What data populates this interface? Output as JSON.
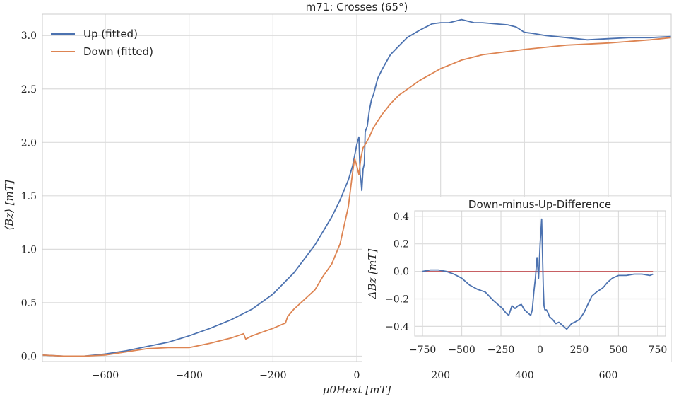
{
  "chart_data": [
    {
      "type": "line",
      "title": "m71: Crosses (65°)",
      "xlabel": "μ0Hext [mT]",
      "ylabel": "⟨Bz⟩ [mT]",
      "xlim": [
        -750,
        750
      ],
      "ylim": [
        -0.05,
        3.2
      ],
      "xticks": [
        -600,
        -400,
        -200,
        0,
        200,
        400,
        600
      ],
      "yticks": [
        0.0,
        0.5,
        1.0,
        1.5,
        2.0,
        2.5,
        3.0
      ],
      "xtick_labels": [
        "−600",
        "−400",
        "−200",
        "0",
        "200",
        "400",
        "600"
      ],
      "ytick_labels": [
        "0.0",
        "0.5",
        "1.0",
        "1.5",
        "2.0",
        "2.5",
        "3.0"
      ],
      "grid": true,
      "legend_position": "top-left",
      "series": [
        {
          "name": "Up (fitted)",
          "color": "#4c72b0",
          "x": [
            -750,
            -700,
            -650,
            -600,
            -550,
            -500,
            -450,
            -400,
            -350,
            -300,
            -250,
            -200,
            -150,
            -100,
            -60,
            -40,
            -20,
            -10,
            0,
            5,
            8,
            10,
            12,
            15,
            18,
            20,
            25,
            30,
            35,
            40,
            50,
            60,
            70,
            80,
            100,
            120,
            150,
            180,
            200,
            220,
            250,
            280,
            300,
            330,
            360,
            380,
            400,
            420,
            450,
            500,
            550,
            600,
            650,
            700,
            750
          ],
          "y": [
            0.01,
            0.0,
            0.0,
            0.02,
            0.05,
            0.09,
            0.13,
            0.19,
            0.26,
            0.34,
            0.44,
            0.58,
            0.78,
            1.04,
            1.3,
            1.46,
            1.65,
            1.78,
            1.98,
            2.05,
            1.7,
            1.65,
            1.55,
            1.75,
            1.8,
            2.1,
            2.15,
            2.3,
            2.4,
            2.45,
            2.6,
            2.68,
            2.75,
            2.82,
            2.9,
            2.98,
            3.05,
            3.11,
            3.12,
            3.12,
            3.15,
            3.12,
            3.12,
            3.11,
            3.1,
            3.08,
            3.03,
            3.02,
            3.0,
            2.98,
            2.96,
            2.97,
            2.98,
            2.98,
            2.99
          ]
        },
        {
          "name": "Down (fitted)",
          "color": "#dd8452",
          "x": [
            -750,
            -700,
            -650,
            -600,
            -550,
            -500,
            -450,
            -400,
            -350,
            -300,
            -270,
            -265,
            -250,
            -200,
            -170,
            -165,
            -150,
            -100,
            -80,
            -60,
            -40,
            -20,
            -10,
            -5,
            0,
            5,
            10,
            15,
            20,
            30,
            40,
            60,
            80,
            100,
            150,
            200,
            250,
            300,
            400,
            500,
            600,
            700,
            750
          ],
          "y": [
            0.01,
            0.0,
            0.0,
            0.01,
            0.04,
            0.07,
            0.08,
            0.08,
            0.12,
            0.17,
            0.21,
            0.16,
            0.19,
            0.26,
            0.31,
            0.37,
            0.44,
            0.62,
            0.75,
            0.86,
            1.05,
            1.4,
            1.72,
            1.85,
            1.78,
            1.7,
            1.86,
            1.95,
            1.98,
            2.05,
            2.14,
            2.26,
            2.36,
            2.44,
            2.58,
            2.69,
            2.77,
            2.82,
            2.87,
            2.91,
            2.93,
            2.96,
            2.98
          ]
        }
      ]
    },
    {
      "type": "line",
      "title": "Down-minus-Up-Difference",
      "xlabel": "",
      "ylabel": "ΔBz [mT]",
      "xlim": [
        -800,
        800
      ],
      "ylim": [
        -0.47,
        0.44
      ],
      "xticks": [
        -750,
        -500,
        -250,
        0,
        250,
        500,
        750
      ],
      "yticks": [
        -0.4,
        -0.2,
        0.0,
        0.2,
        0.4
      ],
      "xtick_labels": [
        "−750",
        "−500",
        "−250",
        "0",
        "250",
        "500",
        "750"
      ],
      "ytick_labels": [
        "−0.4",
        "−0.2",
        "0.0",
        "0.2",
        "0.4"
      ],
      "grid": true,
      "reference_line": {
        "y": 0.0,
        "color": "#c44e52"
      },
      "series": [
        {
          "color": "#4c72b0",
          "x": [
            -750,
            -700,
            -650,
            -600,
            -550,
            -500,
            -450,
            -400,
            -350,
            -300,
            -260,
            -240,
            -220,
            -200,
            -180,
            -160,
            -140,
            -120,
            -100,
            -80,
            -60,
            -50,
            -40,
            -30,
            -20,
            -10,
            0,
            10,
            20,
            25,
            30,
            40,
            50,
            60,
            80,
            100,
            120,
            150,
            170,
            200,
            220,
            250,
            280,
            300,
            330,
            360,
            400,
            430,
            460,
            500,
            550,
            600,
            650,
            700,
            720
          ],
          "y": [
            0.0,
            0.01,
            0.01,
            0.0,
            -0.02,
            -0.05,
            -0.1,
            -0.13,
            -0.15,
            -0.21,
            -0.25,
            -0.27,
            -0.3,
            -0.32,
            -0.25,
            -0.27,
            -0.25,
            -0.24,
            -0.28,
            -0.3,
            -0.32,
            -0.28,
            -0.15,
            -0.05,
            0.1,
            -0.05,
            0.2,
            0.38,
            -0.1,
            -0.25,
            -0.28,
            -0.28,
            -0.3,
            -0.33,
            -0.35,
            -0.38,
            -0.37,
            -0.4,
            -0.42,
            -0.38,
            -0.37,
            -0.35,
            -0.3,
            -0.25,
            -0.18,
            -0.15,
            -0.12,
            -0.08,
            -0.05,
            -0.03,
            -0.03,
            -0.02,
            -0.02,
            -0.03,
            -0.02
          ]
        }
      ]
    }
  ]
}
